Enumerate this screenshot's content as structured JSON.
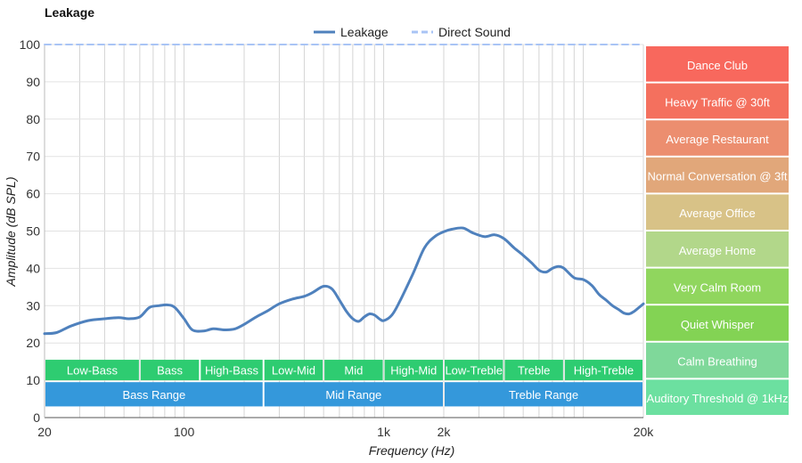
{
  "chart_data": {
    "type": "line",
    "title": "Leakage",
    "xlabel": "Frequency (Hz)",
    "ylabel": "Amplitude (dB SPL)",
    "xscale": "log",
    "xlim": [
      20,
      20000
    ],
    "ylim": [
      0,
      100
    ],
    "grid": true,
    "legend_position": "top-center",
    "x_tick_labels": [
      {
        "value": 20,
        "label": "20"
      },
      {
        "value": 100,
        "label": "100"
      },
      {
        "value": 1000,
        "label": "1k"
      },
      {
        "value": 2000,
        "label": "2k"
      },
      {
        "value": 20000,
        "label": "20k"
      }
    ],
    "y_ticks": [
      0,
      10,
      20,
      30,
      40,
      50,
      60,
      70,
      80,
      90,
      100
    ],
    "series": [
      {
        "name": "Leakage",
        "color": "#4f81bd",
        "style": "solid",
        "x": [
          20,
          23,
          27,
          33,
          40,
          47,
          53,
          60,
          67,
          75,
          83,
          90,
          100,
          110,
          125,
          140,
          160,
          180,
          200,
          230,
          260,
          300,
          350,
          400,
          440,
          500,
          550,
          600,
          650,
          700,
          750,
          800,
          850,
          900,
          950,
          1000,
          1100,
          1200,
          1400,
          1600,
          1800,
          2000,
          2200,
          2500,
          2800,
          3200,
          3600,
          4000,
          4500,
          5000,
          5500,
          6000,
          6500,
          7000,
          7500,
          8000,
          9000,
          10000,
          11000,
          12000,
          13000,
          14000,
          15000,
          16000,
          17000,
          18000,
          19000,
          20000
        ],
        "y": [
          22.5,
          22.8,
          24.5,
          26.0,
          26.5,
          26.8,
          26.5,
          27.0,
          29.5,
          30.0,
          30.2,
          29.5,
          26.5,
          23.5,
          23.2,
          23.8,
          23.5,
          23.8,
          25.0,
          27.0,
          28.5,
          30.5,
          31.8,
          32.5,
          33.5,
          35.2,
          34.5,
          31.5,
          28.5,
          26.5,
          25.8,
          27.0,
          27.8,
          27.5,
          26.5,
          26.0,
          27.5,
          31.0,
          38.5,
          45.5,
          48.5,
          49.8,
          50.5,
          50.8,
          49.5,
          48.5,
          49.0,
          48.0,
          45.5,
          43.5,
          41.5,
          39.5,
          39.0,
          40.0,
          40.5,
          40.0,
          37.5,
          37.0,
          35.5,
          33.0,
          31.5,
          30.0,
          29.0,
          28.0,
          27.8,
          28.5,
          29.5,
          30.5
        ]
      },
      {
        "name": "Direct Sound",
        "color": "#a9c4f5",
        "style": "dashed",
        "x": [
          20,
          20000
        ],
        "y": [
          100,
          100
        ]
      }
    ],
    "frequency_bands": [
      {
        "label": "Low-Bass",
        "from": 20,
        "to": 60
      },
      {
        "label": "Bass",
        "from": 60,
        "to": 120
      },
      {
        "label": "High-Bass",
        "from": 120,
        "to": 250
      },
      {
        "label": "Low-Mid",
        "from": 250,
        "to": 500
      },
      {
        "label": "Mid",
        "from": 500,
        "to": 1000
      },
      {
        "label": "High-Mid",
        "from": 1000,
        "to": 2000
      },
      {
        "label": "Low-Treble",
        "from": 2000,
        "to": 4000
      },
      {
        "label": "Treble",
        "from": 4000,
        "to": 8000
      },
      {
        "label": "High-Treble",
        "from": 8000,
        "to": 20000
      }
    ],
    "frequency_ranges": [
      {
        "label": "Bass Range",
        "from": 20,
        "to": 250
      },
      {
        "label": "Mid Range",
        "from": 250,
        "to": 2000
      },
      {
        "label": "Treble Range",
        "from": 2000,
        "to": 20000
      }
    ],
    "band_colors": {
      "sub_band": "#2ecc71",
      "range": "#3498db"
    },
    "reference_levels": [
      {
        "label": "Dance Club",
        "color": "#f8685d"
      },
      {
        "label": "Heavy Traffic @ 30ft",
        "color": "#f4705e"
      },
      {
        "label": "Average Restaurant",
        "color": "#ec8e6f"
      },
      {
        "label": "Normal Conversation @ 3ft",
        "color": "#e1a77a"
      },
      {
        "label": "Average Office",
        "color": "#d8c287"
      },
      {
        "label": "Average Home",
        "color": "#b2d78a"
      },
      {
        "label": "Very Calm Room",
        "color": "#90d65e"
      },
      {
        "label": "Quiet Whisper",
        "color": "#83d354"
      },
      {
        "label": "Calm Breathing",
        "color": "#7fd89a"
      },
      {
        "label": "Auditory Threshold @ 1kHz",
        "color": "#6ce0a0"
      }
    ]
  }
}
